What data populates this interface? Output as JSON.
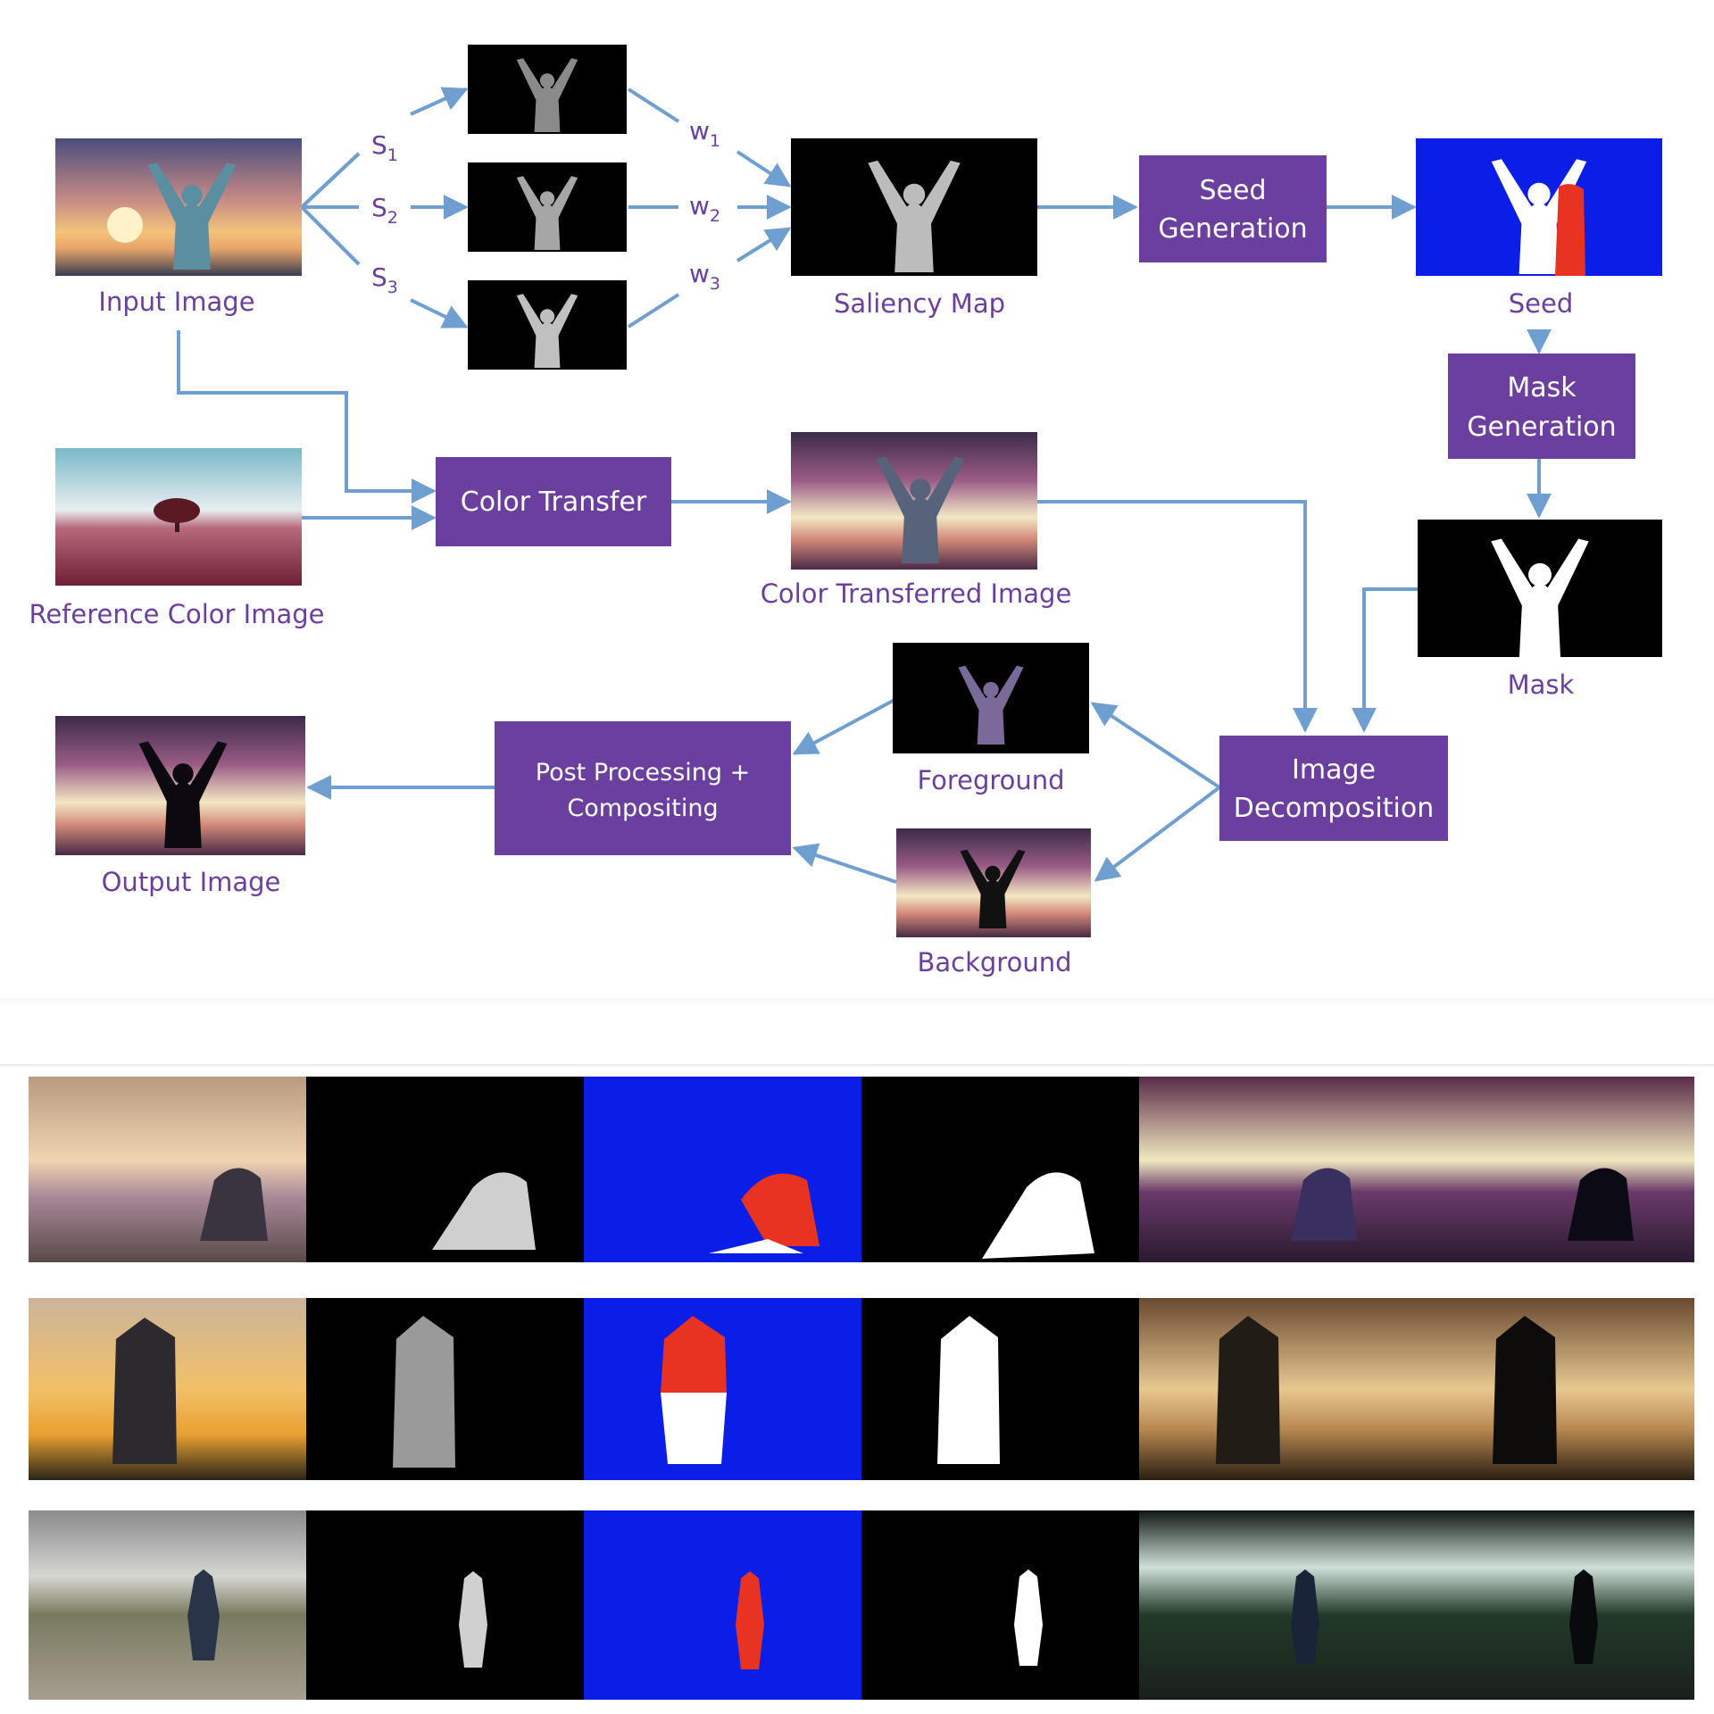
{
  "labels": {
    "input_image": "Input Image",
    "reference_color_image": "Reference Color Image",
    "saliency_map": "Saliency Map",
    "seed": "Seed",
    "color_transferred_image": "Color Transferred Image",
    "mask": "Mask",
    "foreground": "Foreground",
    "background": "Background",
    "output_image": "Output Image"
  },
  "boxes": {
    "seed_generation": [
      "Seed",
      "Generation"
    ],
    "mask_generation": [
      "Mask",
      "Generation"
    ],
    "color_transfer": [
      "Color Transfer"
    ],
    "image_decomposition": [
      "Image",
      "Decomposition"
    ],
    "post_processing": [
      "Post Processing +",
      "Compositing"
    ]
  },
  "scales": [
    {
      "letter": "S",
      "sub": "1"
    },
    {
      "letter": "S",
      "sub": "2"
    },
    {
      "letter": "S",
      "sub": "3"
    }
  ],
  "weights": [
    {
      "letter": "w",
      "sub": "1"
    },
    {
      "letter": "w",
      "sub": "2"
    },
    {
      "letter": "w",
      "sub": "3"
    }
  ],
  "colors": {
    "box_fill": "#6a3f9e",
    "label_text": "#6a3f9e",
    "arrow": "#6f9fd0",
    "seed_blue": "#0a1ee8",
    "seed_red": "#e83222"
  },
  "results": {
    "rows": 3,
    "columns": [
      "input",
      "saliency",
      "seed",
      "mask",
      "color-transferred",
      "output"
    ]
  }
}
